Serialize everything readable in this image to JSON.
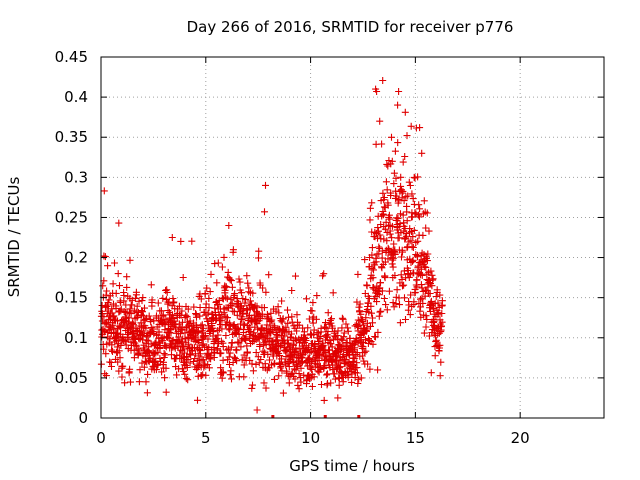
{
  "chart_data": {
    "type": "scatter",
    "title": "Day 266 of 2016, SRMTID for receiver p776",
    "xlabel": "GPS time / hours",
    "ylabel": "SRMTID / TECUs",
    "xlim": [
      0,
      24
    ],
    "ylim": [
      0,
      0.45
    ],
    "x_ticks": [
      0,
      5,
      10,
      15,
      20
    ],
    "x_tick_labels": [
      "0",
      "5",
      "10",
      "15",
      "20"
    ],
    "y_ticks": [
      0,
      0.05,
      0.1,
      0.15,
      0.2,
      0.25,
      0.3,
      0.35,
      0.4,
      0.45
    ],
    "y_tick_labels": [
      "0",
      "0.05",
      "0.1",
      "0.15",
      "0.2",
      "0.25",
      "0.3",
      "0.35",
      "0.4",
      "0.45"
    ],
    "grid": true,
    "marker": "+",
    "color": "#e00000",
    "data_hours": [
      0,
      16.3
    ],
    "envelope": [
      {
        "x": 0.0,
        "y": 0.12,
        "spread": 0.035
      },
      {
        "x": 0.5,
        "y": 0.12,
        "spread": 0.035
      },
      {
        "x": 1.0,
        "y": 0.105,
        "spread": 0.035
      },
      {
        "x": 1.5,
        "y": 0.115,
        "spread": 0.035
      },
      {
        "x": 2.0,
        "y": 0.1,
        "spread": 0.03
      },
      {
        "x": 2.5,
        "y": 0.1,
        "spread": 0.03
      },
      {
        "x": 3.0,
        "y": 0.11,
        "spread": 0.035
      },
      {
        "x": 3.5,
        "y": 0.1,
        "spread": 0.035
      },
      {
        "x": 4.0,
        "y": 0.09,
        "spread": 0.03
      },
      {
        "x": 4.5,
        "y": 0.095,
        "spread": 0.03
      },
      {
        "x": 5.0,
        "y": 0.1,
        "spread": 0.035
      },
      {
        "x": 5.5,
        "y": 0.11,
        "spread": 0.04
      },
      {
        "x": 6.0,
        "y": 0.12,
        "spread": 0.045
      },
      {
        "x": 6.5,
        "y": 0.12,
        "spread": 0.04
      },
      {
        "x": 7.0,
        "y": 0.11,
        "spread": 0.035
      },
      {
        "x": 7.5,
        "y": 0.11,
        "spread": 0.04
      },
      {
        "x": 8.0,
        "y": 0.09,
        "spread": 0.035
      },
      {
        "x": 8.5,
        "y": 0.1,
        "spread": 0.03
      },
      {
        "x": 9.0,
        "y": 0.085,
        "spread": 0.03
      },
      {
        "x": 9.5,
        "y": 0.08,
        "spread": 0.025
      },
      {
        "x": 10.0,
        "y": 0.085,
        "spread": 0.03
      },
      {
        "x": 10.5,
        "y": 0.08,
        "spread": 0.025
      },
      {
        "x": 11.0,
        "y": 0.08,
        "spread": 0.025
      },
      {
        "x": 11.5,
        "y": 0.075,
        "spread": 0.025
      },
      {
        "x": 12.0,
        "y": 0.08,
        "spread": 0.025
      },
      {
        "x": 12.5,
        "y": 0.1,
        "spread": 0.03
      },
      {
        "x": 13.0,
        "y": 0.17,
        "spread": 0.06
      },
      {
        "x": 13.5,
        "y": 0.22,
        "spread": 0.07
      },
      {
        "x": 14.0,
        "y": 0.24,
        "spread": 0.075
      },
      {
        "x": 14.5,
        "y": 0.21,
        "spread": 0.065
      },
      {
        "x": 15.0,
        "y": 0.22,
        "spread": 0.06
      },
      {
        "x": 15.5,
        "y": 0.19,
        "spread": 0.06
      },
      {
        "x": 16.0,
        "y": 0.11,
        "spread": 0.035
      },
      {
        "x": 16.3,
        "y": 0.115,
        "spread": 0.03
      }
    ],
    "notable_points": [
      {
        "x": 0.85,
        "y": 0.243
      },
      {
        "x": 3.4,
        "y": 0.225
      },
      {
        "x": 6.1,
        "y": 0.24
      },
      {
        "x": 7.85,
        "y": 0.29
      },
      {
        "x": 7.8,
        "y": 0.257
      },
      {
        "x": 7.45,
        "y": 0.01
      },
      {
        "x": 13.1,
        "y": 0.41
      },
      {
        "x": 13.15,
        "y": 0.407
      },
      {
        "x": 14.2,
        "y": 0.407
      },
      {
        "x": 14.15,
        "y": 0.39
      },
      {
        "x": 13.3,
        "y": 0.37
      },
      {
        "x": 15.2,
        "y": 0.362
      },
      {
        "x": 14.6,
        "y": 0.352
      },
      {
        "x": 15.3,
        "y": 0.33
      },
      {
        "x": 13.9,
        "y": 0.32
      },
      {
        "x": 14.3,
        "y": 0.3
      },
      {
        "x": 13.2,
        "y": 0.06
      },
      {
        "x": 11.3,
        "y": 0.025
      },
      {
        "x": 10.65,
        "y": 0.022
      }
    ],
    "axis_marks_x": [
      8.2,
      10.7,
      12.3
    ]
  }
}
